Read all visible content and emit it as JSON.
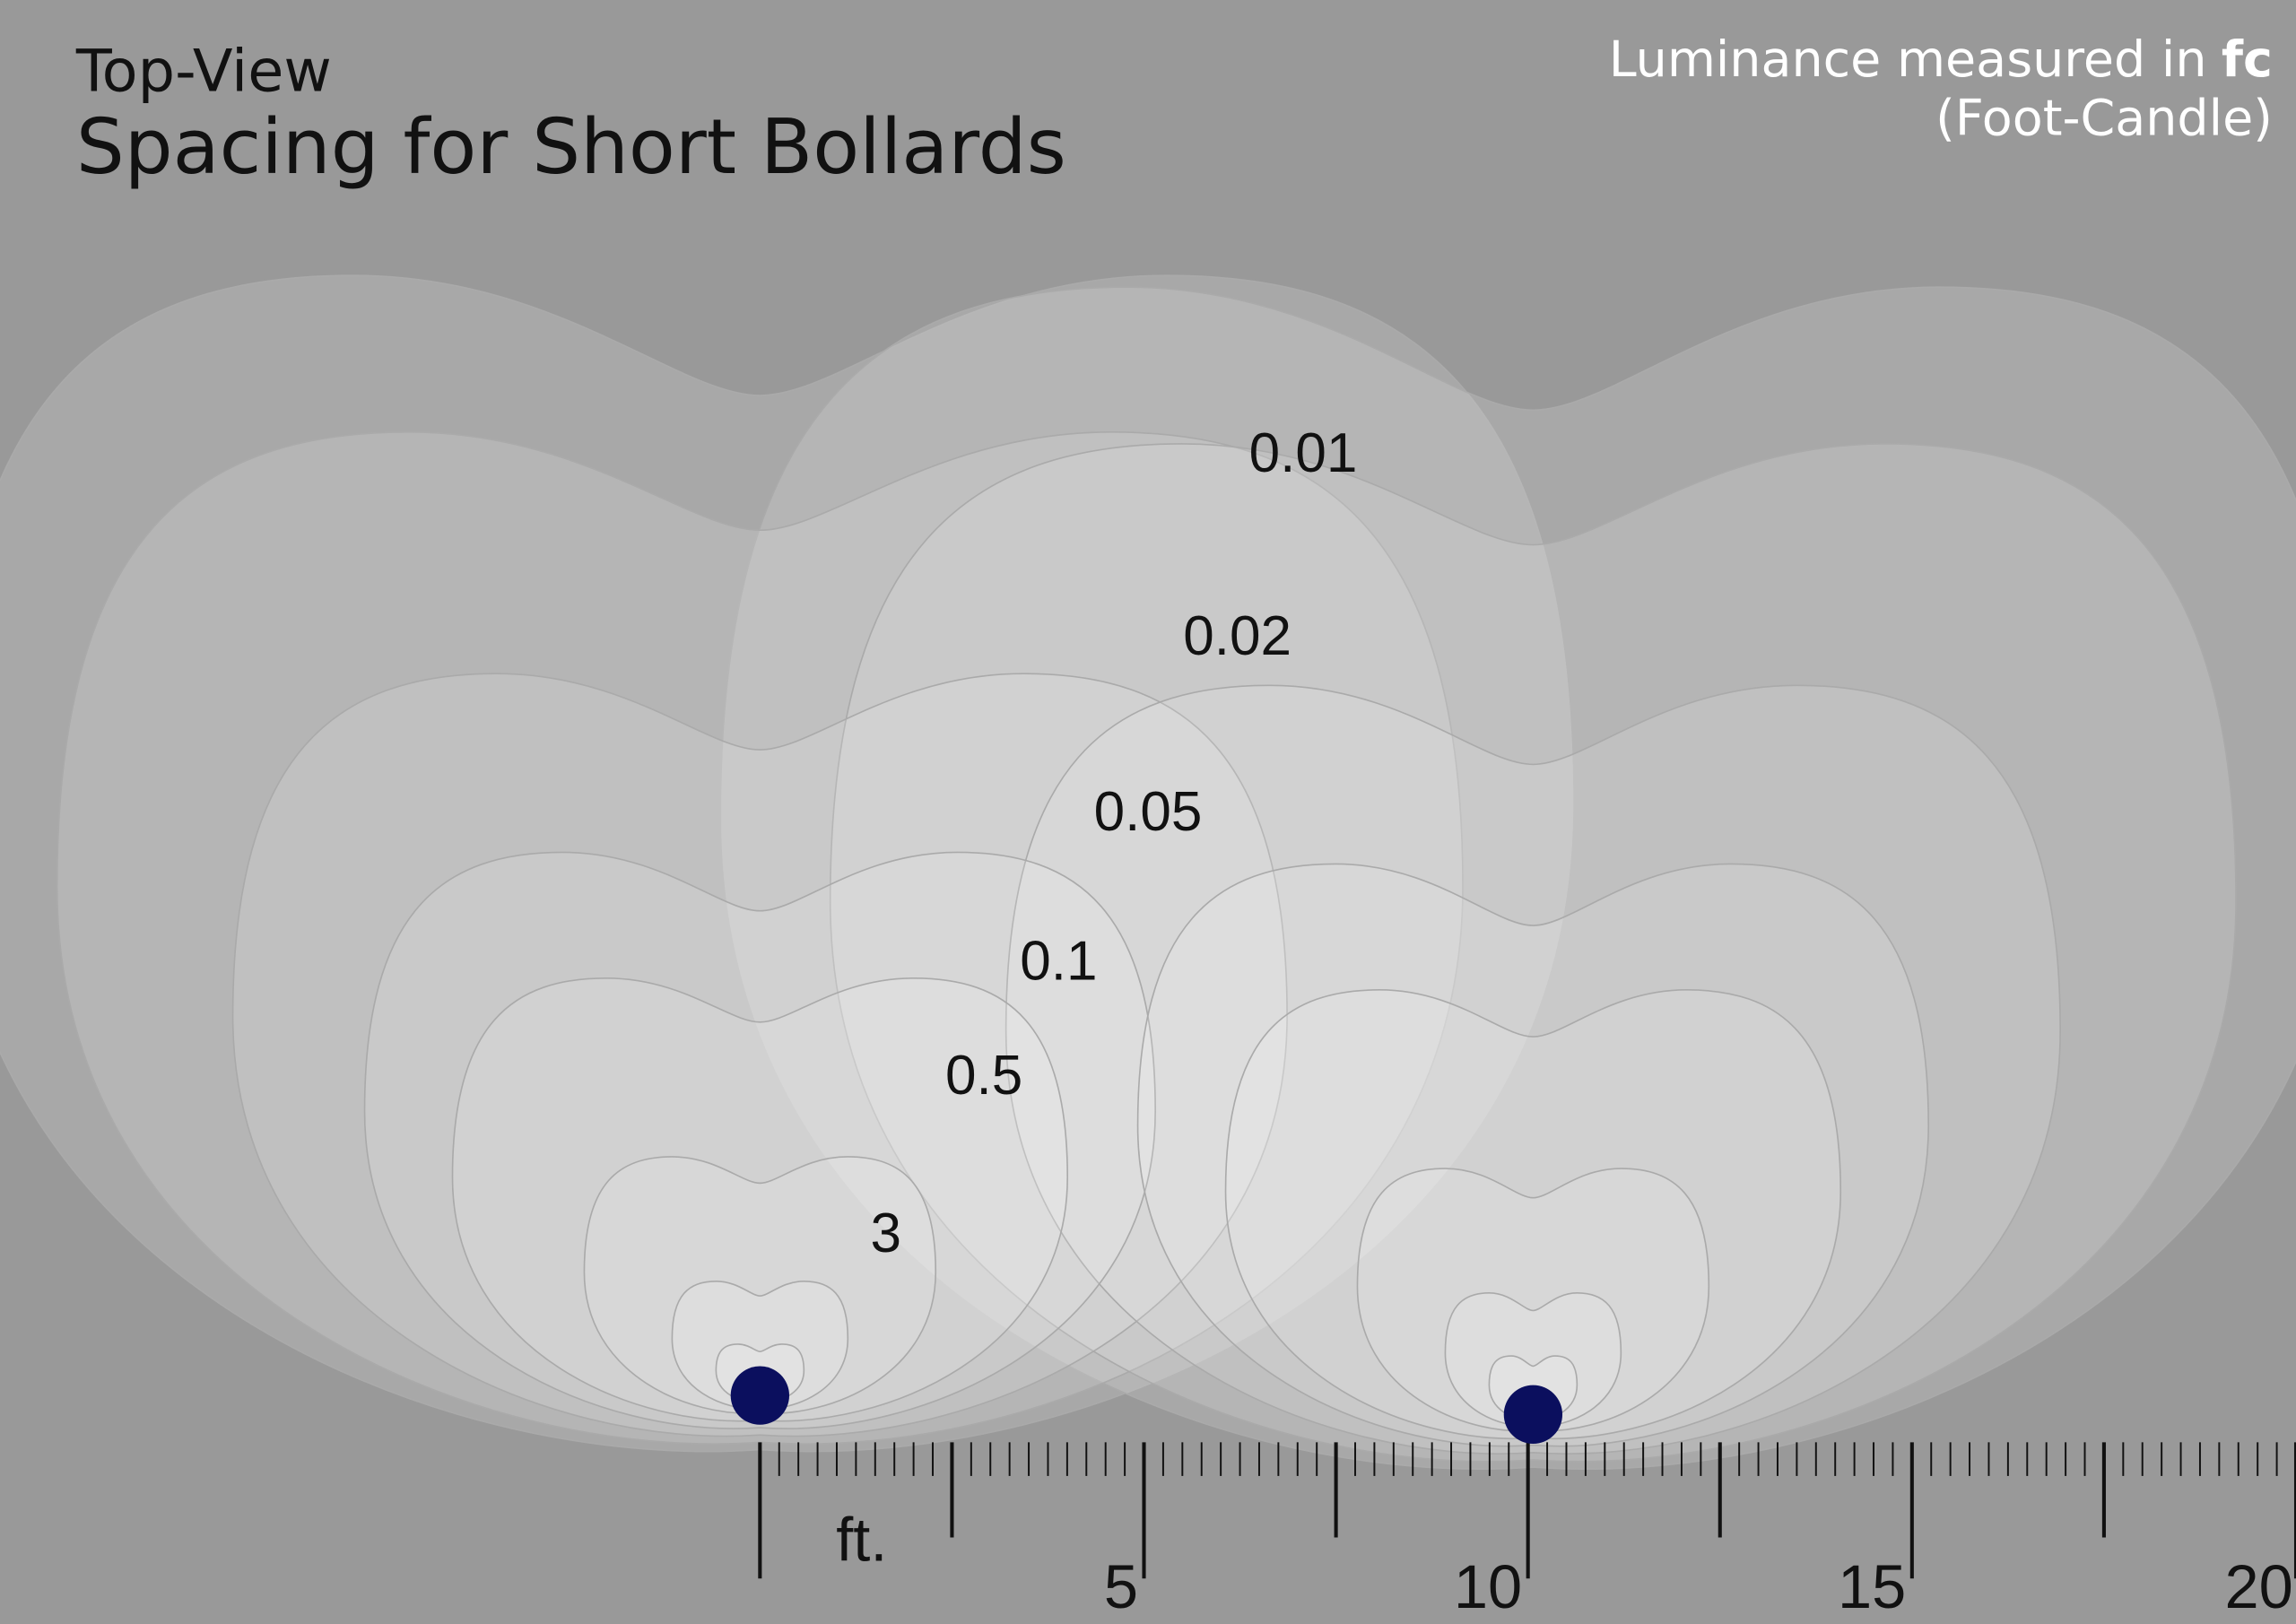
{
  "header": {
    "subtitle": "Top-View",
    "title": "Spacing for Short Bollards"
  },
  "note": {
    "line1": "Luminance measured in",
    "unit": "fc",
    "line2": "(Foot-Candle)"
  },
  "contour_labels": [
    "0.01",
    "0.02",
    "0.05",
    "0.1",
    "0.5",
    "3"
  ],
  "ruler": {
    "unit": "ft.",
    "labels": [
      "5",
      "10",
      "15",
      "20"
    ]
  }
}
